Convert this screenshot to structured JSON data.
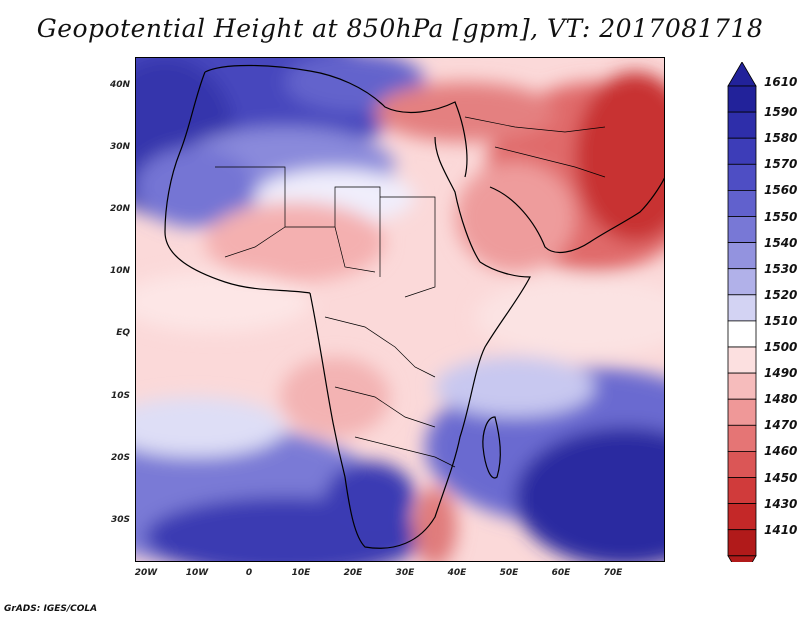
{
  "title": "Geopotential Height at 850hPa [gpm], VT: 2017081718",
  "footer": "GrADS: IGES/COLA",
  "y_axis": {
    "labels": [
      "40N",
      "30N",
      "20N",
      "10N",
      "EQ",
      "10S",
      "20S",
      "30S"
    ]
  },
  "x_axis": {
    "labels": [
      "20W",
      "10W",
      "0",
      "10E",
      "20E",
      "30E",
      "40E",
      "50E",
      "60E",
      "70E"
    ]
  },
  "colorbar": {
    "levels": [
      "1610",
      "1590",
      "1580",
      "1570",
      "1560",
      "1550",
      "1540",
      "1530",
      "1520",
      "1510",
      "1500",
      "1490",
      "1480",
      "1470",
      "1460",
      "1450",
      "1430",
      "1410"
    ],
    "colors": [
      "#22229a",
      "#2e2eaa",
      "#3d3db8",
      "#4e4ec4",
      "#6161cd",
      "#7878d6",
      "#9393df",
      "#b1b1e9",
      "#d3d3f3",
      "#ffffff",
      "#fce0e0",
      "#f6bcbc",
      "#ef9898",
      "#e57575",
      "#db5656",
      "#d03b3b",
      "#c42828",
      "#b11a1a"
    ]
  },
  "map": {
    "region": "Africa and Middle East",
    "variable": "850hPa geopotential height",
    "units": "gpm"
  }
}
